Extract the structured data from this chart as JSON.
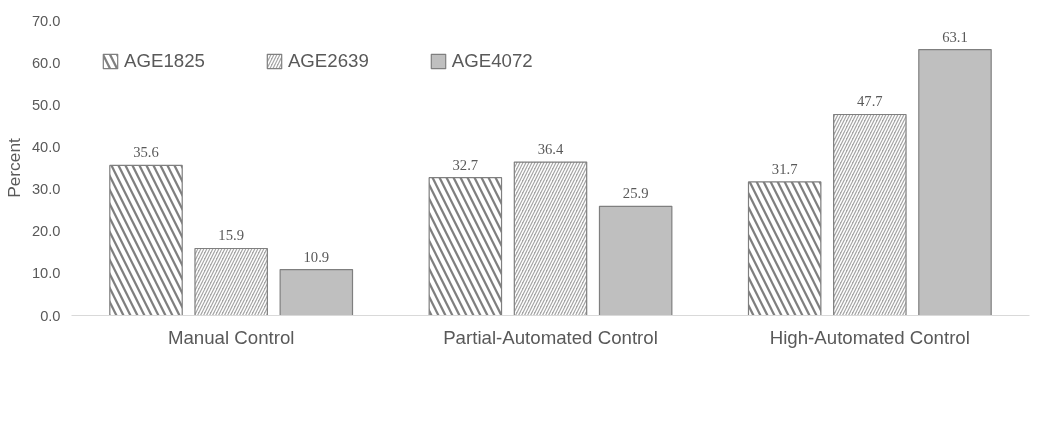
{
  "chart_data": {
    "type": "bar",
    "ylabel": "Percent",
    "categories": [
      "Manual Control",
      "Partial-Automated Control",
      "High-Automated Control"
    ],
    "series": [
      {
        "name": "AGE1825",
        "color": "#7f7f7f",
        "values": [
          35.6,
          32.7,
          31.7
        ]
      },
      {
        "name": "AGE2639",
        "color": "#a6a6a6",
        "values": [
          15.9,
          36.4,
          47.7
        ]
      },
      {
        "name": "AGE4072",
        "color": "#bfbfbf",
        "values": [
          10.9,
          25.9,
          63.1
        ]
      }
    ],
    "ylim": [
      0,
      70
    ],
    "yticks": [
      {
        "value": 0,
        "label": "0.0"
      },
      {
        "value": 10,
        "label": "10.0"
      },
      {
        "value": 20,
        "label": "20.0"
      },
      {
        "value": 30,
        "label": "30.0"
      },
      {
        "value": 40,
        "label": "40.0"
      },
      {
        "value": 50,
        "label": "50.0"
      },
      {
        "value": 60,
        "label": "60.0"
      },
      {
        "value": 70,
        "label": "70.0"
      }
    ],
    "data_labels": true,
    "grid": false,
    "legend": "top left"
  }
}
